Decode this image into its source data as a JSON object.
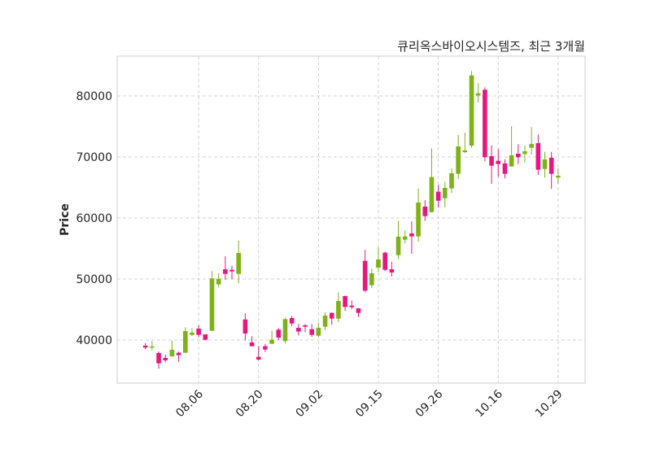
{
  "chart_data": {
    "type": "candlestick",
    "title": "큐리옥스바이오시스템즈, 최근 3개월",
    "xlabel": "",
    "ylabel": "Price",
    "ylim": [
      32930,
      86530
    ],
    "xlim": [
      -4.24,
      66.05
    ],
    "grid": true,
    "colors": {
      "up": "#7fb217",
      "down": "#e9167e",
      "grid": "#cccccc",
      "frame": "#dddddd",
      "text": "#262626"
    },
    "y_ticks": [
      40000,
      50000,
      60000,
      70000,
      80000
    ],
    "x_ticks": [
      {
        "index": 8,
        "label": "08.06"
      },
      {
        "index": 17,
        "label": "08.20"
      },
      {
        "index": 26,
        "label": "09.02"
      },
      {
        "index": 35,
        "label": "09.15"
      },
      {
        "index": 44,
        "label": "09.26"
      },
      {
        "index": 53,
        "label": "10.16"
      },
      {
        "index": 62,
        "label": "10.29"
      }
    ],
    "ohlc_fields": [
      "open",
      "high",
      "low",
      "close"
    ],
    "candles": [
      [
        39070,
        39510,
        38490,
        38760
      ],
      [
        38760,
        39830,
        38300,
        38950
      ],
      [
        37870,
        38130,
        35290,
        36180
      ],
      [
        37070,
        37600,
        36310,
        36670
      ],
      [
        37330,
        39870,
        37240,
        38400
      ],
      [
        37910,
        38130,
        36440,
        37510
      ],
      [
        37910,
        42090,
        37910,
        41470
      ],
      [
        40840,
        41960,
        40670,
        41200
      ],
      [
        41870,
        42400,
        40490,
        40840
      ],
      [
        40930,
        40930,
        39960,
        40040
      ],
      [
        41510,
        51290,
        41510,
        50090
      ],
      [
        49110,
        50930,
        48620,
        50040
      ],
      [
        51600,
        53730,
        49830,
        50840
      ],
      [
        51510,
        52170,
        49960,
        51240
      ],
      [
        50840,
        56310,
        49290,
        54270
      ],
      [
        43370,
        44360,
        39960,
        41070
      ],
      [
        39600,
        40620,
        38980,
        38980
      ],
      [
        37240,
        39020,
        36620,
        36800
      ],
      [
        38980,
        39380,
        38040,
        38440
      ],
      [
        39380,
        41510,
        39380,
        40040
      ],
      [
        41690,
        41960,
        40000,
        40400
      ],
      [
        39820,
        43690,
        39420,
        43420
      ],
      [
        43600,
        43960,
        42270,
        42710
      ],
      [
        42000,
        42620,
        40760,
        41380
      ],
      [
        42400,
        42620,
        41290,
        42180
      ],
      [
        41780,
        42620,
        40530,
        40840
      ],
      [
        40710,
        42840,
        40490,
        42000
      ],
      [
        42180,
        44530,
        41600,
        44000
      ],
      [
        44440,
        44530,
        42490,
        43510
      ],
      [
        43510,
        47820,
        42930,
        46400
      ],
      [
        47200,
        47290,
        44760,
        45420
      ],
      [
        45640,
        46490,
        45070,
        45380
      ],
      [
        45200,
        45200,
        43730,
        44440
      ],
      [
        52980,
        54760,
        47820,
        48090
      ],
      [
        48980,
        51730,
        48490,
        50930
      ],
      [
        51870,
        55200,
        51160,
        53200
      ],
      [
        54310,
        54490,
        51290,
        51510
      ],
      [
        51600,
        52840,
        50400,
        51070
      ],
      [
        53910,
        59560,
        53290,
        56930
      ],
      [
        56440,
        57960,
        55830,
        56980
      ],
      [
        57470,
        59430,
        54130,
        56980
      ],
      [
        56980,
        64840,
        56130,
        62530
      ],
      [
        61870,
        62930,
        59510,
        60310
      ],
      [
        60970,
        71430,
        60900,
        66710
      ],
      [
        64310,
        65420,
        61730,
        62840
      ],
      [
        63240,
        65960,
        61730,
        64930
      ],
      [
        64840,
        68130,
        64090,
        67330
      ],
      [
        67240,
        73600,
        66400,
        71730
      ],
      [
        70800,
        73960,
        70630,
        71070
      ],
      [
        71870,
        84090,
        71510,
        83370
      ],
      [
        80090,
        82090,
        78930,
        80440
      ],
      [
        81020,
        81420,
        69290,
        69960
      ],
      [
        70130,
        71910,
        65600,
        68580
      ],
      [
        69380,
        71290,
        66760,
        68840
      ],
      [
        68930,
        69600,
        66490,
        67240
      ],
      [
        68440,
        75030,
        68440,
        70270
      ],
      [
        70530,
        72090,
        68840,
        69960
      ],
      [
        70490,
        71870,
        69070,
        70930
      ],
      [
        71510,
        74890,
        70400,
        72130
      ],
      [
        72270,
        73690,
        67070,
        67910
      ],
      [
        68040,
        70840,
        66630,
        69600
      ],
      [
        69870,
        70840,
        64760,
        67240
      ],
      [
        66630,
        68090,
        65640,
        66930
      ]
    ]
  }
}
